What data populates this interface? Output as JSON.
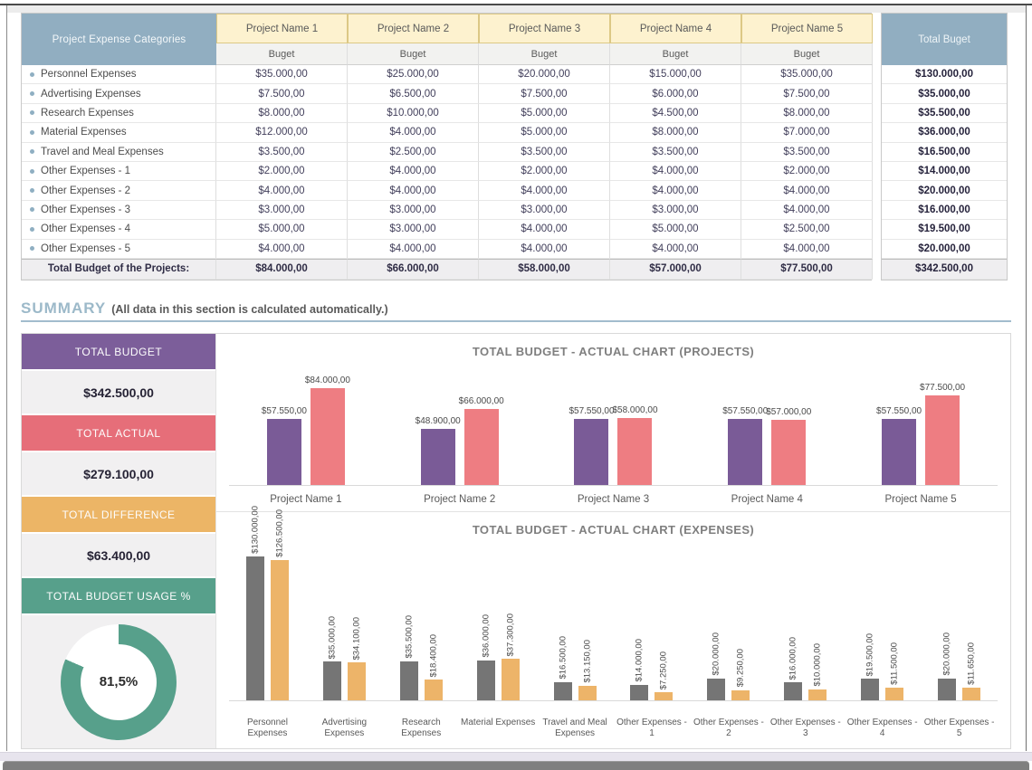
{
  "colors": {
    "header_blue": "#91aec1",
    "header_cream": "#fdf2cf",
    "purple": "#7c5e9a",
    "red": "#e66e79",
    "orange": "#ecb566",
    "teal": "#57a08b",
    "bar_purple": "#7a5b97",
    "bar_pink": "#ee7d82",
    "bar_gray": "#757575",
    "bar_orange": "#edb469"
  },
  "table": {
    "corner_header": "Project Expense Categories",
    "sub_header": "Buget",
    "total_header": "Total Buget",
    "projects": [
      "Project Name 1",
      "Project Name 2",
      "Project Name 3",
      "Project Name 4",
      "Project Name 5"
    ],
    "rows": [
      {
        "category": "Personnel Expenses",
        "values": [
          "$35.000,00",
          "$25.000,00",
          "$20.000,00",
          "$15.000,00",
          "$35.000,00"
        ],
        "total": "$130.000,00"
      },
      {
        "category": "Advertising Expenses",
        "values": [
          "$7.500,00",
          "$6.500,00",
          "$7.500,00",
          "$6.000,00",
          "$7.500,00"
        ],
        "total": "$35.000,00"
      },
      {
        "category": "Research Expenses",
        "values": [
          "$8.000,00",
          "$10.000,00",
          "$5.000,00",
          "$4.500,00",
          "$8.000,00"
        ],
        "total": "$35.500,00"
      },
      {
        "category": "Material Expenses",
        "values": [
          "$12.000,00",
          "$4.000,00",
          "$5.000,00",
          "$8.000,00",
          "$7.000,00"
        ],
        "total": "$36.000,00"
      },
      {
        "category": "Travel and Meal Expenses",
        "values": [
          "$3.500,00",
          "$2.500,00",
          "$3.500,00",
          "$3.500,00",
          "$3.500,00"
        ],
        "total": "$16.500,00"
      },
      {
        "category": "Other Expenses - 1",
        "values": [
          "$2.000,00",
          "$4.000,00",
          "$2.000,00",
          "$4.000,00",
          "$2.000,00"
        ],
        "total": "$14.000,00"
      },
      {
        "category": "Other Expenses - 2",
        "values": [
          "$4.000,00",
          "$4.000,00",
          "$4.000,00",
          "$4.000,00",
          "$4.000,00"
        ],
        "total": "$20.000,00"
      },
      {
        "category": "Other Expenses - 3",
        "values": [
          "$3.000,00",
          "$3.000,00",
          "$3.000,00",
          "$3.000,00",
          "$4.000,00"
        ],
        "total": "$16.000,00"
      },
      {
        "category": "Other Expenses - 4",
        "values": [
          "$5.000,00",
          "$3.000,00",
          "$4.000,00",
          "$5.000,00",
          "$2.500,00"
        ],
        "total": "$19.500,00"
      },
      {
        "category": "Other Expenses - 5",
        "values": [
          "$4.000,00",
          "$4.000,00",
          "$4.000,00",
          "$4.000,00",
          "$4.000,00"
        ],
        "total": "$20.000,00"
      }
    ],
    "total_row": {
      "label": "Total Budget of the Projects:",
      "values": [
        "$84.000,00",
        "$66.000,00",
        "$58.000,00",
        "$57.000,00",
        "$77.500,00"
      ],
      "total": "$342.500,00"
    }
  },
  "summary": {
    "title": "SUMMARY",
    "subtitle": "(All data in this section is calculated automatically.)",
    "cards": [
      {
        "label": "TOTAL BUDGET",
        "value": "$342.500,00",
        "color": "#7c5e9a"
      },
      {
        "label": "TOTAL ACTUAL",
        "value": "$279.100,00",
        "color": "#e66e79"
      },
      {
        "label": "TOTAL DIFFERENCE",
        "value": "$63.400,00",
        "color": "#ecb566"
      },
      {
        "label": "TOTAL BUDGET USAGE %",
        "value": null,
        "color": "#57a08b"
      }
    ]
  },
  "chart_data": [
    {
      "type": "bar",
      "title": "TOTAL BUDGET - ACTUAL CHART (PROJECTS)",
      "categories": [
        "Project Name 1",
        "Project Name 2",
        "Project Name 3",
        "Project Name 4",
        "Project Name 5"
      ],
      "series": [
        {
          "name": "Total Actual",
          "color": "#7a5b97",
          "values": [
            57550,
            48900,
            57550,
            57550,
            57550
          ],
          "labels": [
            "$57.550,00",
            "$48.900,00",
            "$57.550,00",
            "$57.550,00",
            "$57.550,00"
          ]
        },
        {
          "name": "Total Budget",
          "color": "#ee7d82",
          "values": [
            84000,
            66000,
            58000,
            57000,
            77500
          ],
          "labels": [
            "$84.000,00",
            "$66.000,00",
            "$58.000,00",
            "$57.000,00",
            "$77.500,00"
          ]
        }
      ],
      "ylim": [
        0,
        88000
      ],
      "grid": false,
      "legend": "none",
      "value_label_orientation": "horizontal"
    },
    {
      "type": "bar",
      "title": "TOTAL BUDGET - ACTUAL CHART (EXPENSES)",
      "categories": [
        "Personnel Expenses",
        "Advertising Expenses",
        "Research Expenses",
        "Material Expenses",
        "Travel and Meal Expenses",
        "Other Expenses - 1",
        "Other Expenses - 2",
        "Other Expenses - 3",
        "Other Expenses - 4",
        "Other Expenses - 5"
      ],
      "series": [
        {
          "name": "Total Budget",
          "color": "#757575",
          "values": [
            130000,
            35000,
            35500,
            36000,
            16500,
            14000,
            20000,
            16000,
            19500,
            20000
          ],
          "labels": [
            "$130.000,00",
            "$35.000,00",
            "$35.500,00",
            "$36.000,00",
            "$16.500,00",
            "$14.000,00",
            "$20.000,00",
            "$16.000,00",
            "$19.500,00",
            "$20.000,00"
          ]
        },
        {
          "name": "Total Actual",
          "color": "#edb469",
          "values": [
            126500,
            34100,
            18400,
            37300,
            13150,
            7250,
            9250,
            10000,
            11500,
            11650
          ],
          "labels": [
            "$126.500,00",
            "$34.100,00",
            "$18.400,00",
            "$37.300,00",
            "$13.150,00",
            "$7.250,00",
            "$9.250,00",
            "$10.000,00",
            "$11.500,00",
            "$11.650,00"
          ]
        }
      ],
      "ylim": [
        0,
        133000
      ],
      "grid": false,
      "legend": "none",
      "value_label_orientation": "vertical"
    },
    {
      "type": "donut",
      "title": "TOTAL BUDGET USAGE %",
      "value": 81.5,
      "label": "81,5%",
      "color": "#57a08b",
      "remainder_color": "#ffffff"
    }
  ]
}
